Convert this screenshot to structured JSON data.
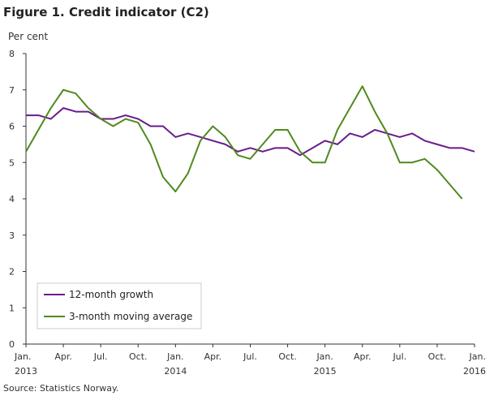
{
  "title": "Figure 1. Credit indicator (C2)",
  "source": "Source: Statistics Norway.",
  "chart_data": {
    "type": "line",
    "title": "Figure 1. Credit indicator (C2)",
    "ylabel": "Per cent",
    "ylim": [
      0,
      8
    ],
    "yticks": [
      0,
      1,
      2,
      3,
      4,
      5,
      6,
      7,
      8
    ],
    "xlim": [
      0,
      36
    ],
    "grid": false,
    "legend_position": "bottom-left",
    "x_ticks": [
      {
        "x": 0,
        "label": "Jan.",
        "year": "2013"
      },
      {
        "x": 3,
        "label": "Apr.",
        "year": ""
      },
      {
        "x": 6,
        "label": "Jul.",
        "year": ""
      },
      {
        "x": 9,
        "label": "Oct.",
        "year": ""
      },
      {
        "x": 12,
        "label": "Jan.",
        "year": "2014"
      },
      {
        "x": 15,
        "label": "Apr.",
        "year": ""
      },
      {
        "x": 18,
        "label": "Jul.",
        "year": ""
      },
      {
        "x": 21,
        "label": "Oct.",
        "year": ""
      },
      {
        "x": 24,
        "label": "Jan.",
        "year": "2015"
      },
      {
        "x": 27,
        "label": "Apr.",
        "year": ""
      },
      {
        "x": 30,
        "label": "Jul.",
        "year": ""
      },
      {
        "x": 33,
        "label": "Oct.",
        "year": ""
      },
      {
        "x": 36,
        "label": "Jan.",
        "year": "2016"
      }
    ],
    "series": [
      {
        "name": "12-month growth",
        "color": "#6a1b8a",
        "values": [
          6.3,
          6.3,
          6.2,
          6.5,
          6.4,
          6.4,
          6.2,
          6.2,
          6.3,
          6.2,
          6.0,
          6.0,
          5.7,
          5.8,
          5.7,
          5.6,
          5.5,
          5.3,
          5.4,
          5.3,
          5.4,
          5.4,
          5.2,
          5.4,
          5.6,
          5.5,
          5.8,
          5.7,
          5.9,
          5.8,
          5.7,
          5.8,
          5.6,
          5.5,
          5.4,
          5.4,
          5.3
        ]
      },
      {
        "name": "3-month moving average",
        "color": "#4f8a1e",
        "values": [
          5.3,
          5.9,
          6.5,
          7.0,
          6.9,
          6.5,
          6.2,
          6.0,
          6.2,
          6.1,
          5.5,
          4.6,
          4.2,
          4.7,
          5.6,
          6.0,
          5.7,
          5.2,
          5.1,
          5.5,
          5.9,
          5.9,
          5.3,
          5.0,
          5.0,
          5.9,
          6.5,
          7.1,
          6.4,
          5.8,
          5.0,
          5.0,
          5.1,
          4.8,
          4.4,
          4.0
        ]
      }
    ]
  }
}
